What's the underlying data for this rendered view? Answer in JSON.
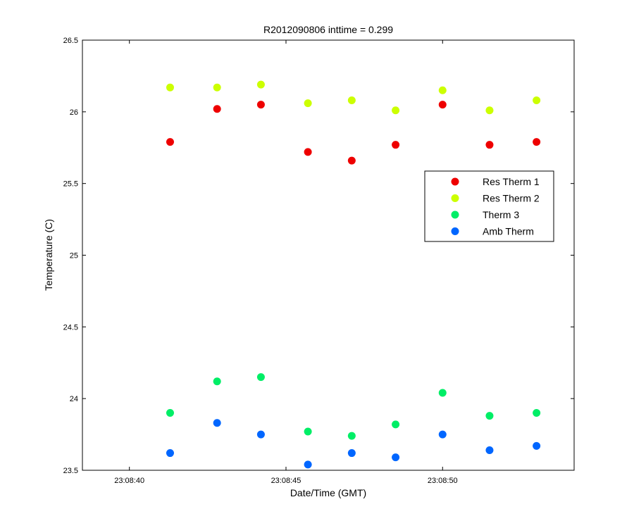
{
  "chart_data": {
    "type": "scatter",
    "title": "R2012090806 inttime = 0.299",
    "xlabel": "Date/Time (GMT)",
    "ylabel": "Temperature (C)",
    "xlim": [
      "23:08:38.5",
      "23:08:54.2"
    ],
    "ylim": [
      23.5,
      26.5
    ],
    "x_ticks": [
      "23:08:40",
      "23:08:45",
      "23:08:50"
    ],
    "y_ticks": [
      "23.5",
      "24",
      "24.5",
      "25",
      "25.5",
      "26",
      "26.5"
    ],
    "x": [
      "23:08:41.3",
      "23:08:42.8",
      "23:08:44.2",
      "23:08:45.7",
      "23:08:47.1",
      "23:08:48.5",
      "23:08:50.0",
      "23:08:51.5",
      "23:08:53.0"
    ],
    "series": [
      {
        "name": "Res Therm 1",
        "color": "#ee0000",
        "values": [
          25.79,
          26.02,
          26.05,
          25.72,
          25.66,
          25.77,
          26.05,
          25.77,
          25.79
        ]
      },
      {
        "name": "Res Therm 2",
        "color": "#ccff00",
        "values": [
          26.17,
          26.17,
          26.19,
          26.06,
          26.08,
          26.01,
          26.15,
          26.01,
          26.08
        ]
      },
      {
        "name": "Therm 3",
        "color": "#00ee66",
        "values": [
          23.9,
          24.12,
          24.15,
          23.77,
          23.74,
          23.82,
          24.04,
          23.88,
          23.9
        ]
      },
      {
        "name": "Amb Therm",
        "color": "#0066ff",
        "values": [
          23.62,
          23.83,
          23.75,
          23.54,
          23.62,
          23.59,
          23.75,
          23.64,
          23.67
        ]
      }
    ],
    "grid": false,
    "legend_position": "right"
  }
}
